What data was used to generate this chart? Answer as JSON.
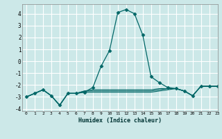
{
  "xlabel": "Humidex (Indice chaleur)",
  "ylabel": "",
  "background_color": "#cce8e8",
  "grid_color": "#ffffff",
  "line_color": "#006666",
  "xlim": [
    -0.5,
    23
  ],
  "ylim": [
    -4.2,
    4.8
  ],
  "yticks": [
    -4,
    -3,
    -2,
    -1,
    0,
    1,
    2,
    3,
    4
  ],
  "xticks": [
    0,
    1,
    2,
    3,
    4,
    5,
    6,
    7,
    8,
    9,
    10,
    11,
    12,
    13,
    14,
    15,
    16,
    17,
    18,
    19,
    20,
    21,
    22,
    23
  ],
  "series": [
    {
      "x": [
        0,
        1,
        2,
        3,
        4,
        5,
        6,
        7,
        8,
        9,
        10,
        11,
        12,
        13,
        14,
        15,
        16,
        17,
        18,
        19,
        20,
        21,
        22,
        23
      ],
      "y": [
        -3.0,
        -2.7,
        -2.4,
        -2.9,
        -3.7,
        -2.7,
        -2.7,
        -2.6,
        -2.2,
        -0.4,
        0.9,
        4.1,
        4.35,
        4.0,
        2.2,
        -1.3,
        -1.8,
        -2.2,
        -2.3,
        -2.5,
        -2.9,
        -2.1,
        -2.1,
        -2.1
      ],
      "marker": "D",
      "markersize": 2.5,
      "linewidth": 0.9
    },
    {
      "x": [
        0,
        1,
        2,
        3,
        4,
        5,
        6,
        7,
        8,
        9,
        10,
        11,
        12,
        13,
        14,
        15,
        16,
        17,
        18,
        19,
        20,
        21,
        22,
        23
      ],
      "y": [
        -3.0,
        -2.7,
        -2.4,
        -2.9,
        -3.7,
        -2.7,
        -2.7,
        -2.5,
        -2.4,
        -2.4,
        -2.4,
        -2.4,
        -2.4,
        -2.4,
        -2.4,
        -2.4,
        -2.3,
        -2.3,
        -2.3,
        -2.5,
        -2.9,
        -2.1,
        -2.1,
        -2.1
      ],
      "marker": null,
      "markersize": 0,
      "linewidth": 0.8
    },
    {
      "x": [
        0,
        1,
        2,
        3,
        4,
        5,
        6,
        7,
        8,
        9,
        10,
        11,
        12,
        13,
        14,
        15,
        16,
        17,
        18,
        19,
        20,
        21,
        22,
        23
      ],
      "y": [
        -3.0,
        -2.7,
        -2.4,
        -2.9,
        -3.7,
        -2.7,
        -2.7,
        -2.5,
        -2.5,
        -2.5,
        -2.5,
        -2.5,
        -2.5,
        -2.5,
        -2.5,
        -2.5,
        -2.4,
        -2.3,
        -2.3,
        -2.5,
        -2.9,
        -2.1,
        -2.1,
        -2.1
      ],
      "marker": null,
      "markersize": 0,
      "linewidth": 0.8
    },
    {
      "x": [
        0,
        1,
        2,
        3,
        4,
        5,
        6,
        7,
        8,
        9,
        10,
        11,
        12,
        13,
        14,
        15,
        16,
        17,
        18,
        19,
        20,
        21,
        22,
        23
      ],
      "y": [
        -3.0,
        -2.7,
        -2.4,
        -2.9,
        -3.7,
        -2.7,
        -2.7,
        -2.6,
        -2.6,
        -2.6,
        -2.6,
        -2.6,
        -2.6,
        -2.6,
        -2.6,
        -2.6,
        -2.5,
        -2.4,
        -2.3,
        -2.5,
        -2.9,
        -2.1,
        -2.1,
        -2.1
      ],
      "marker": null,
      "markersize": 0,
      "linewidth": 0.8
    }
  ]
}
